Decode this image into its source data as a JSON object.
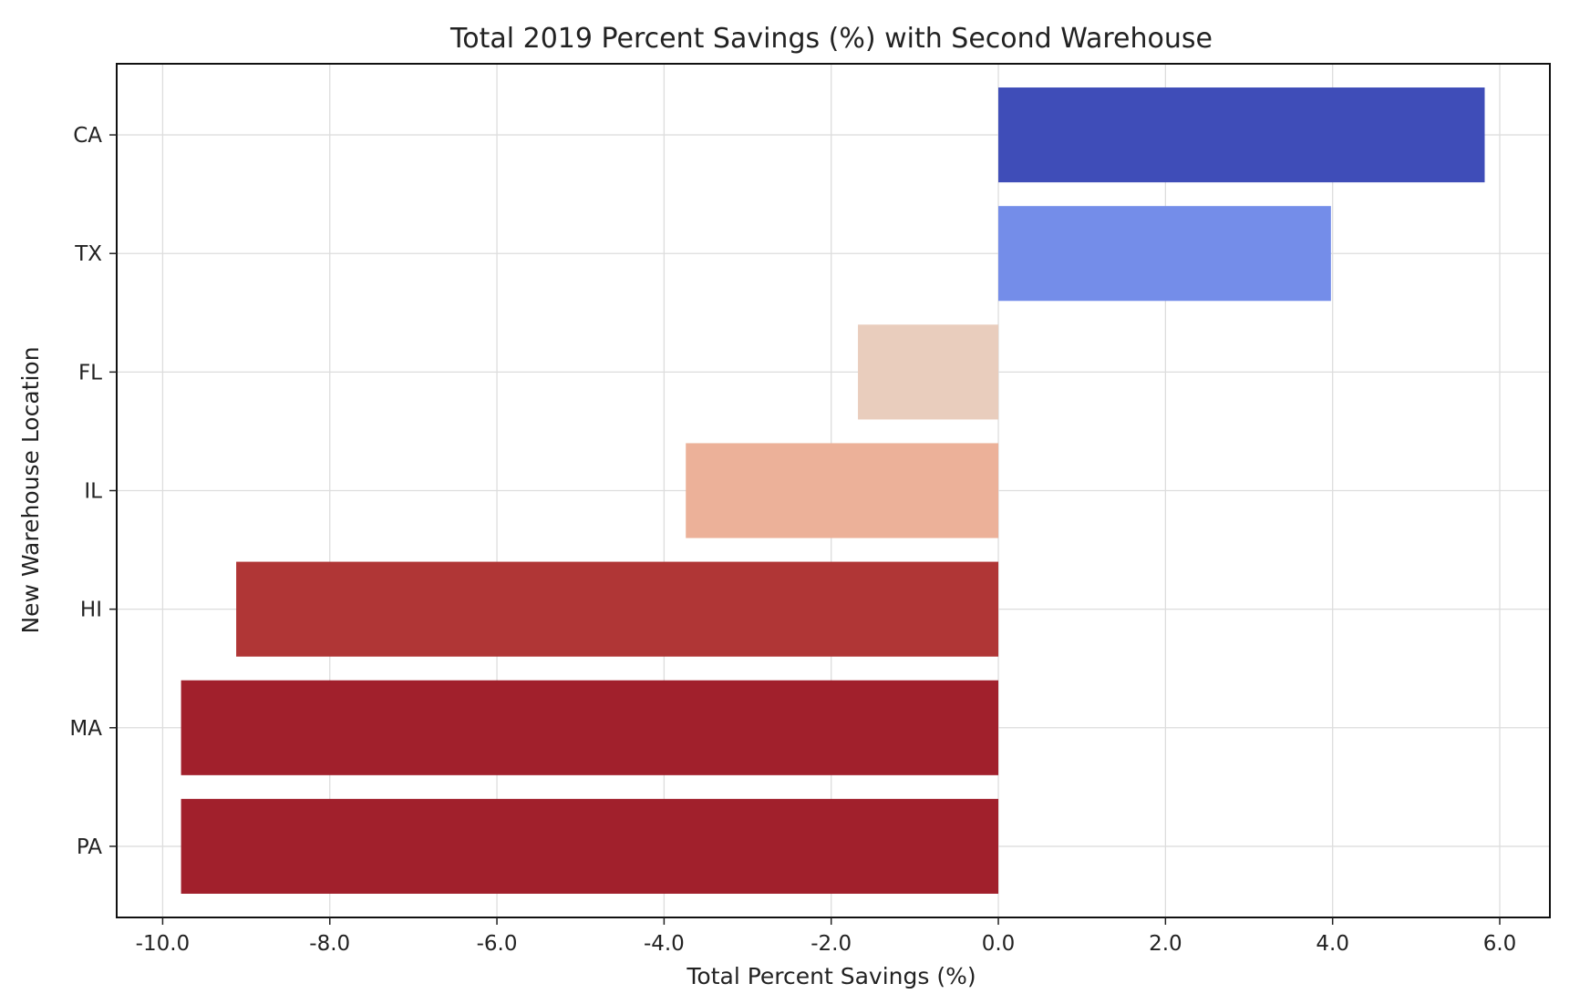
{
  "chart_data": {
    "type": "bar",
    "orientation": "horizontal",
    "title": "Total 2019 Percent Savings (%) with Second Warehouse",
    "xlabel": "Total Percent Savings (%)",
    "ylabel": "New Warehouse Location",
    "categories": [
      "CA",
      "TX",
      "FL",
      "IL",
      "HI",
      "MA",
      "PA"
    ],
    "values": [
      5.82,
      3.98,
      -1.68,
      -3.74,
      -9.12,
      -9.78,
      -9.78
    ],
    "colors": [
      "#3f4db8",
      "#748de9",
      "#e9cdbd",
      "#ecb199",
      "#b03636",
      "#a1202c",
      "#a1202c"
    ],
    "xlim": [
      -10.55,
      6.6
    ],
    "xticks": [
      -10.0,
      -8.0,
      -6.0,
      -4.0,
      -2.0,
      0.0,
      2.0,
      4.0,
      6.0
    ],
    "xtick_labels": [
      "-10.0",
      "-8.0",
      "-6.0",
      "-4.0",
      "-2.0",
      "0.0",
      "2.0",
      "4.0",
      "6.0"
    ],
    "grid": true
  }
}
